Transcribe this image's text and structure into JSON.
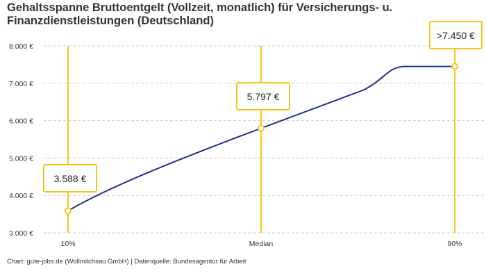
{
  "chart_data": {
    "type": "line",
    "title": "Gehaltsspanne Bruttoentgelt (Vollzeit, monatlich) für Versicherungs- u. Finanzdienstleistungen (Deutschland)",
    "categories": [
      "10%",
      "Median",
      "90%"
    ],
    "values": [
      3588,
      5797,
      7450
    ],
    "value_labels": [
      "3.588 €",
      "5.797 €",
      ">7.450 €"
    ],
    "y_ticks": [
      3000,
      4000,
      5000,
      6000,
      7000,
      8000
    ],
    "y_tick_labels": [
      "3.000 €",
      "4.000 €",
      "5.000 €",
      "6.000 €",
      "7.000 €",
      "8.000 €"
    ],
    "ylim": [
      3000,
      8000
    ],
    "grid": "horizontal dashed",
    "colors": {
      "line": "#1f2f8f",
      "marker": "#f5c518",
      "grid": "#cccccc"
    }
  },
  "source": "Chart: gute-jobs.de (Wollmilchsau GmbH) | Datenquelle: Bundesagentur für Arbeit"
}
